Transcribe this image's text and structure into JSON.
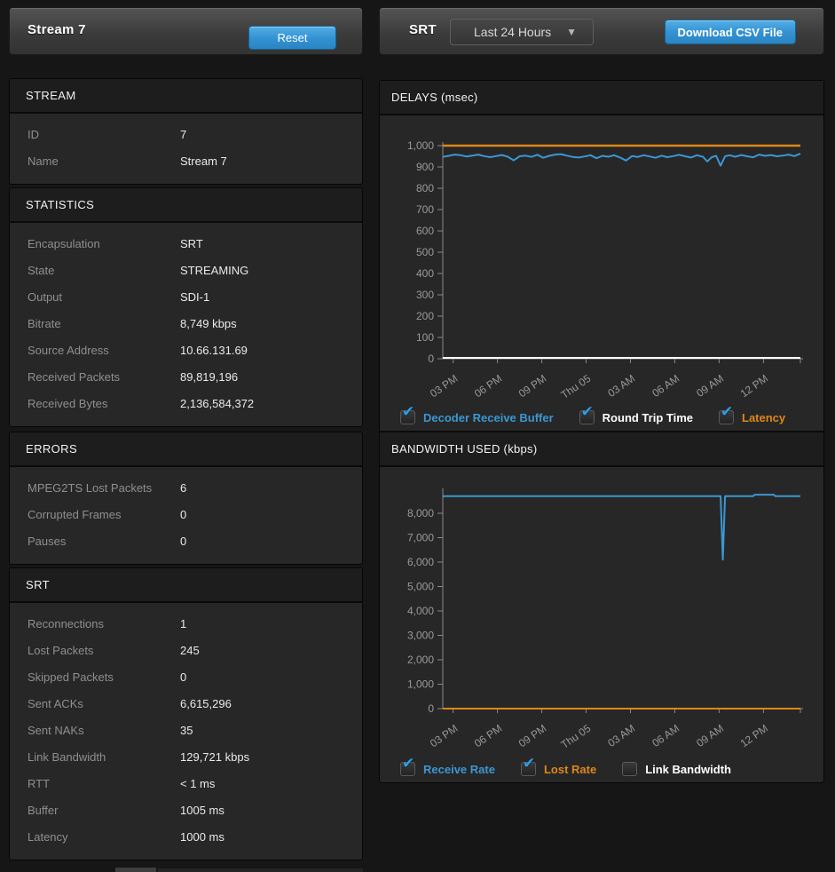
{
  "colors": {
    "accent_blue": "#3b97d3",
    "accent_orange": "#dd8718",
    "button_blue_top": "#55aee5",
    "button_blue_bottom": "#2b84c1",
    "panel_bg": "#272727",
    "section_header_bg": "#1d1d1d",
    "page_bg": "#161616",
    "label_gray": "#8f8f8f",
    "value_white": "#eaeaea",
    "axis_gray": "#8a8a8a",
    "tick_label_gray": "#9a9a9a",
    "checkbox_check_blue": "#2d9ee8"
  },
  "left": {
    "header": {
      "title": "Stream 7",
      "reset_label": "Reset"
    },
    "sections": [
      {
        "title": "STREAM",
        "rows": [
          {
            "label": "ID",
            "value": "7"
          },
          {
            "label": "Name",
            "value": "Stream 7"
          }
        ]
      },
      {
        "title": "STATISTICS",
        "rows": [
          {
            "label": "Encapsulation",
            "value": "SRT"
          },
          {
            "label": "State",
            "value": "STREAMING"
          },
          {
            "label": "Output",
            "value": "SDI-1"
          },
          {
            "label": "Bitrate",
            "value": "8,749 kbps"
          },
          {
            "label": "Source Address",
            "value": "10.66.131.69"
          },
          {
            "label": "Received Packets",
            "value": "89,819,196"
          },
          {
            "label": "Received Bytes",
            "value": "2,136,584,372"
          }
        ]
      },
      {
        "title": "ERRORS",
        "rows": [
          {
            "label": "MPEG2TS Lost Packets",
            "value": "6"
          },
          {
            "label": "Corrupted Frames",
            "value": "0"
          },
          {
            "label": "Pauses",
            "value": "0"
          }
        ]
      },
      {
        "title": "SRT",
        "rows": [
          {
            "label": "Reconnections",
            "value": "1"
          },
          {
            "label": "Lost Packets",
            "value": "245"
          },
          {
            "label": "Skipped Packets",
            "value": "0"
          },
          {
            "label": "Sent ACKs",
            "value": "6,615,296"
          },
          {
            "label": "Sent NAKs",
            "value": "35"
          },
          {
            "label": "Link Bandwidth",
            "value": "129,721 kbps"
          },
          {
            "label": "RTT",
            "value": "< 1 ms"
          },
          {
            "label": "Buffer",
            "value": "1005 ms"
          },
          {
            "label": "Latency",
            "value": "1000 ms"
          }
        ]
      }
    ]
  },
  "right": {
    "header": {
      "title": "SRT",
      "range_selected": "Last 24 Hours",
      "download_label": "Download CSV File"
    }
  },
  "chart_data": [
    {
      "type": "line",
      "title": "DELAYS (msec)",
      "xlabel": "",
      "ylabel": "msec",
      "xlim_hours": [
        0,
        24.2
      ],
      "ylim": [
        0,
        1000
      ],
      "y_tick_step": 100,
      "grid": false,
      "legend_position": "bottom",
      "x_ticks": [
        {
          "h": 0.7,
          "label": "03 PM"
        },
        {
          "h": 3.7,
          "label": "06 PM"
        },
        {
          "h": 6.7,
          "label": "09 PM"
        },
        {
          "h": 9.7,
          "label": "Thu 05"
        },
        {
          "h": 12.7,
          "label": "03 AM"
        },
        {
          "h": 15.7,
          "label": "06 AM"
        },
        {
          "h": 18.7,
          "label": "09 AM"
        },
        {
          "h": 21.7,
          "label": "12 PM"
        },
        {
          "h": 24.2,
          "label": ""
        }
      ],
      "series": [
        {
          "name": "Decoder Receive Buffer",
          "color": "#3b97d3",
          "checked": true,
          "width": 2,
          "points": [
            [
              0,
              947
            ],
            [
              0.4,
              952
            ],
            [
              0.8,
              958
            ],
            [
              1.2,
              955
            ],
            [
              1.6,
              949
            ],
            [
              2,
              953
            ],
            [
              2.4,
              958
            ],
            [
              2.8,
              951
            ],
            [
              3.2,
              946
            ],
            [
              3.6,
              951
            ],
            [
              4,
              956
            ],
            [
              4.4,
              948
            ],
            [
              4.8,
              931
            ],
            [
              5.2,
              950
            ],
            [
              5.6,
              953
            ],
            [
              6,
              947
            ],
            [
              6.4,
              957
            ],
            [
              6.8,
              943
            ],
            [
              7.2,
              952
            ],
            [
              7.6,
              958
            ],
            [
              8,
              960
            ],
            [
              8.4,
              953
            ],
            [
              8.8,
              947
            ],
            [
              9.2,
              944
            ],
            [
              9.6,
              949
            ],
            [
              10,
              955
            ],
            [
              10.4,
              941
            ],
            [
              10.8,
              952
            ],
            [
              11.2,
              948
            ],
            [
              11.6,
              955
            ],
            [
              12,
              944
            ],
            [
              12.4,
              930
            ],
            [
              12.8,
              951
            ],
            [
              13.2,
              947
            ],
            [
              13.6,
              955
            ],
            [
              14,
              949
            ],
            [
              14.4,
              943
            ],
            [
              14.8,
              953
            ],
            [
              15.2,
              946
            ],
            [
              15.6,
              951
            ],
            [
              16,
              957
            ],
            [
              16.4,
              950
            ],
            [
              16.8,
              944
            ],
            [
              17.2,
              955
            ],
            [
              17.6,
              948
            ],
            [
              17.9,
              926
            ],
            [
              18.2,
              946
            ],
            [
              18.5,
              952
            ],
            [
              18.8,
              906
            ],
            [
              19.1,
              950
            ],
            [
              19.4,
              955
            ],
            [
              19.8,
              948
            ],
            [
              20.2,
              956
            ],
            [
              20.6,
              950
            ],
            [
              21,
              945
            ],
            [
              21.4,
              958
            ],
            [
              21.8,
              952
            ],
            [
              22.2,
              956
            ],
            [
              22.6,
              950
            ],
            [
              23,
              953
            ],
            [
              23.4,
              958
            ],
            [
              23.8,
              951
            ],
            [
              24.2,
              963
            ]
          ]
        },
        {
          "name": "Round Trip Time",
          "color": "#ffffff",
          "checked": true,
          "width": 2,
          "points": [
            [
              0,
              4
            ],
            [
              24.2,
              4
            ]
          ]
        },
        {
          "name": "Latency",
          "color": "#dd8718",
          "checked": true,
          "width": 2.5,
          "points": [
            [
              0,
              1000
            ],
            [
              24.2,
              1000
            ]
          ]
        }
      ]
    },
    {
      "type": "line",
      "title": "BANDWIDTH USED (kbps)",
      "xlabel": "",
      "ylabel": "kbps",
      "xlim_hours": [
        0,
        24.2
      ],
      "ylim": [
        0,
        8000
      ],
      "y_tick_step": 1000,
      "grid": false,
      "legend_position": "bottom",
      "x_ticks": [
        {
          "h": 0.7,
          "label": "03 PM"
        },
        {
          "h": 3.7,
          "label": "06 PM"
        },
        {
          "h": 6.7,
          "label": "09 PM"
        },
        {
          "h": 9.7,
          "label": "Thu 05"
        },
        {
          "h": 12.7,
          "label": "03 AM"
        },
        {
          "h": 15.7,
          "label": "06 AM"
        },
        {
          "h": 18.7,
          "label": "09 AM"
        },
        {
          "h": 21.7,
          "label": "12 PM"
        },
        {
          "h": 24.2,
          "label": ""
        }
      ],
      "series": [
        {
          "name": "Receive Rate",
          "color": "#3b97d3",
          "checked": true,
          "width": 2,
          "points": [
            [
              0,
              8700
            ],
            [
              18.6,
              8700
            ],
            [
              18.8,
              8700
            ],
            [
              18.95,
              6100
            ],
            [
              19.1,
              8700
            ],
            [
              21.0,
              8700
            ],
            [
              21.1,
              8760
            ],
            [
              22.4,
              8760
            ],
            [
              22.5,
              8700
            ],
            [
              24.2,
              8700
            ]
          ]
        },
        {
          "name": "Lost Rate",
          "color": "#dd8718",
          "checked": true,
          "width": 2,
          "points": [
            [
              0,
              0
            ],
            [
              24.2,
              0
            ]
          ]
        },
        {
          "name": "Link Bandwidth",
          "color": "#ffffff",
          "checked": false,
          "width": 2,
          "points": []
        }
      ]
    }
  ]
}
